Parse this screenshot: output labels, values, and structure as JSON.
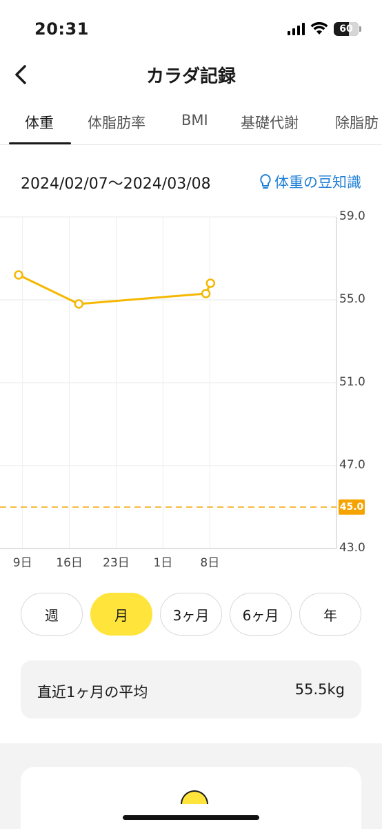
{
  "status_bar": {
    "time": "20:31",
    "battery": "60"
  },
  "header": {
    "title": "カラダ記録",
    "back_icon": "chevron-left-icon"
  },
  "tabs": [
    {
      "label": "体重",
      "active": true
    },
    {
      "label": "体脂肪率",
      "active": false
    },
    {
      "label": "BMI",
      "active": false
    },
    {
      "label": "基礎代謝",
      "active": false
    },
    {
      "label": "除脂肪",
      "active": false
    }
  ],
  "date_range": "2024/02/07〜2024/03/08",
  "tips": {
    "label": "体重の豆知識",
    "icon": "lightbulb-icon"
  },
  "chart_data": {
    "type": "line",
    "x_tick_labels": [
      "9日",
      "16日",
      "23日",
      "1日",
      "8日"
    ],
    "y_tick_labels": [
      "59.0",
      "55.0",
      "51.0",
      "47.0",
      "43.0"
    ],
    "ylim": [
      43,
      59
    ],
    "goal": {
      "value": 45.0,
      "label": "45.0"
    },
    "series": [
      {
        "points": [
          {
            "x": "2024-02-08",
            "y": 56.2
          },
          {
            "x": "2024-02-17",
            "y": 54.8
          },
          {
            "x": "2024-03-07",
            "y": 55.3
          },
          {
            "x": "2024-03-08",
            "y": 55.8
          }
        ]
      }
    ],
    "color": "#f5b800",
    "goal_color": "#f5a300",
    "grid": true
  },
  "periods": [
    {
      "label": "週",
      "active": false
    },
    {
      "label": "月",
      "active": true
    },
    {
      "label": "3ヶ月",
      "active": false
    },
    {
      "label": "6ヶ月",
      "active": false
    },
    {
      "label": "年",
      "active": false
    }
  ],
  "average": {
    "label": "直近1ヶ月の平均",
    "value": "55.5kg"
  }
}
